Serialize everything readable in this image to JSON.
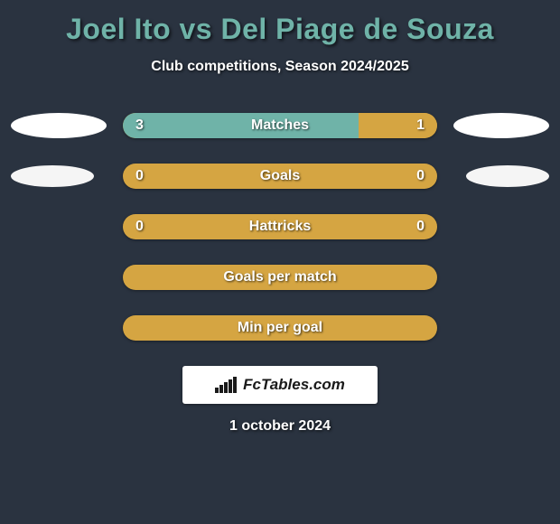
{
  "title": "Joel Ito vs Del Piage de Souza",
  "title_color": "#6fb3a8",
  "subtitle": "Club competitions, Season 2024/2025",
  "background_color": "#2a3340",
  "bar_default_color": "#d5a542",
  "bar_secondary_color": "#6fb3a8",
  "text_color": "#ffffff",
  "rows": [
    {
      "label": "Matches",
      "left_value": "3",
      "right_value": "1",
      "left_pct": 75,
      "right_pct": 25,
      "left_color": "#6fb3a8",
      "right_color": "#d5a542",
      "show_left_logo": true,
      "show_right_logo": true,
      "logo_kind": "big"
    },
    {
      "label": "Goals",
      "left_value": "0",
      "right_value": "0",
      "left_pct": 0,
      "right_pct": 0,
      "left_color": "#d5a542",
      "right_color": "#d5a542",
      "base_color": "#d5a542",
      "show_left_logo": true,
      "show_right_logo": true,
      "logo_kind": "small"
    },
    {
      "label": "Hattricks",
      "left_value": "0",
      "right_value": "0",
      "left_pct": 0,
      "right_pct": 0,
      "left_color": "#d5a542",
      "right_color": "#d5a542",
      "base_color": "#d5a542",
      "show_left_logo": false,
      "show_right_logo": false
    },
    {
      "label": "Goals per match",
      "left_value": "",
      "right_value": "",
      "left_pct": 0,
      "right_pct": 0,
      "base_color": "#d5a542",
      "show_left_logo": false,
      "show_right_logo": false
    },
    {
      "label": "Min per goal",
      "left_value": "",
      "right_value": "",
      "left_pct": 0,
      "right_pct": 0,
      "base_color": "#d5a542",
      "show_left_logo": false,
      "show_right_logo": false
    }
  ],
  "footer": {
    "brand": "FcTables.com",
    "date": "1 october 2024",
    "badge_bg": "#ffffff",
    "chart_bar_heights": [
      6,
      9,
      12,
      15,
      18
    ]
  }
}
